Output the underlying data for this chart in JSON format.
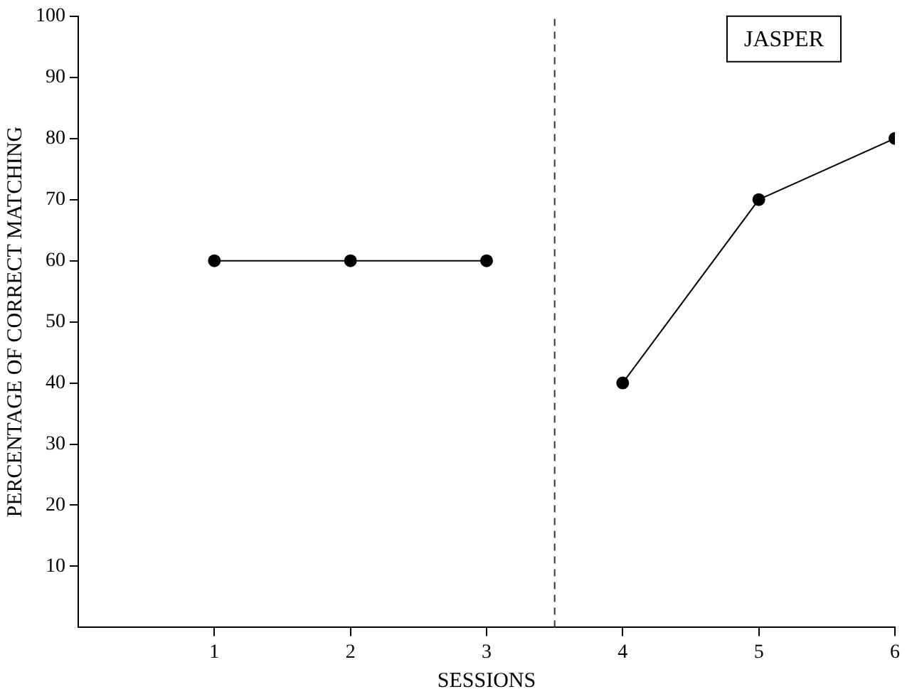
{
  "chart_data": {
    "type": "line",
    "xlabel": "SESSIONS",
    "ylabel": "PERCENTAGE OF CORRECT MATCHING",
    "annotations": [
      "JASPER"
    ],
    "series": [
      {
        "color": "#000000",
        "x": [
          1,
          2,
          3
        ],
        "values": [
          60,
          60,
          60
        ]
      },
      {
        "color": "#000000",
        "x": [
          4,
          5,
          6
        ],
        "values": [
          40,
          70,
          80
        ]
      }
    ],
    "xlim": [
      0,
      6
    ],
    "xticks": [
      1,
      2,
      3,
      4,
      5,
      6
    ],
    "ylim": [
      0,
      100
    ],
    "yticks": [
      10,
      20,
      30,
      40,
      50,
      60,
      70,
      80,
      90,
      100
    ],
    "ref_lines": [
      {
        "axis": "x",
        "value": 3.5,
        "color": "#333333",
        "line_style": "dashed"
      }
    ],
    "grid": false,
    "legend": false,
    "marker": "circle",
    "line_style": "solid"
  }
}
